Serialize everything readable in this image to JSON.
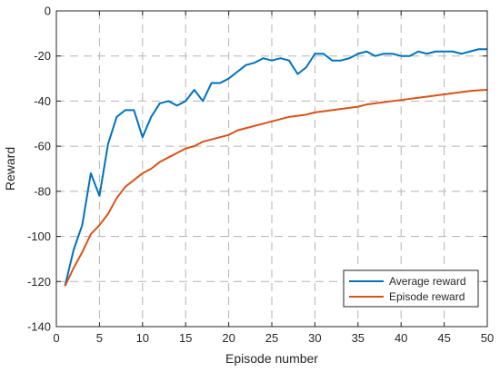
{
  "chart_data": {
    "type": "line",
    "title": "",
    "xlabel": "Episode number",
    "ylabel": "Reward",
    "xlim": [
      0,
      50
    ],
    "ylim": [
      -140,
      0
    ],
    "xticks": [
      0,
      5,
      10,
      15,
      20,
      25,
      30,
      35,
      40,
      45,
      50
    ],
    "yticks": [
      -140,
      -120,
      -100,
      -80,
      -60,
      -40,
      -20,
      0
    ],
    "grid": true,
    "legend_position": "bottom-right",
    "x": [
      1,
      2,
      3,
      4,
      5,
      6,
      7,
      8,
      9,
      10,
      11,
      12,
      13,
      14,
      15,
      16,
      17,
      18,
      19,
      20,
      21,
      22,
      23,
      24,
      25,
      26,
      27,
      28,
      29,
      30,
      31,
      32,
      33,
      34,
      35,
      36,
      37,
      38,
      39,
      40,
      41,
      42,
      43,
      44,
      45,
      46,
      47,
      48,
      49,
      50
    ],
    "series": [
      {
        "name": "Average reward",
        "color": "#0072BD",
        "values": [
          -122,
          -106,
          -95,
          -72,
          -82,
          -59,
          -47,
          -44,
          -44,
          -56,
          -47,
          -41,
          -40,
          -42,
          -40,
          -35,
          -40,
          -32,
          -32,
          -30,
          -27,
          -24,
          -23,
          -21,
          -22,
          -21,
          -22,
          -28,
          -25,
          -19,
          -19,
          -22,
          -22,
          -21,
          -19,
          -18,
          -20,
          -19,
          -19,
          -20,
          -20,
          -18,
          -19,
          -18,
          -18,
          -18,
          -19,
          -18,
          -17,
          -17
        ]
      },
      {
        "name": "Episode reward",
        "color": "#D95319",
        "values": [
          -122,
          -114,
          -107,
          -99,
          -95,
          -90,
          -83,
          -78,
          -75,
          -72,
          -70,
          -67,
          -65,
          -63,
          -61,
          -60,
          -58,
          -57,
          -56,
          -55,
          -53,
          -52,
          -51,
          -50,
          -49,
          -48,
          -47,
          -46.5,
          -46,
          -45,
          -44.5,
          -44,
          -43.5,
          -43,
          -42.5,
          -41.5,
          -41,
          -40.5,
          -40,
          -39.5,
          -39,
          -38.5,
          -38,
          -37.5,
          -37,
          -36.5,
          -36,
          -35.5,
          -35.2,
          -35
        ]
      }
    ]
  }
}
